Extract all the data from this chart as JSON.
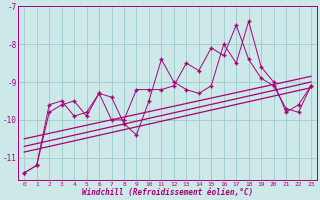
{
  "xlabel": "Windchill (Refroidissement éolien,°C)",
  "bg_color": "#cce8e8",
  "line_color": "#aa0077",
  "grid_color": "#99cccc",
  "ylim": [
    -11.6,
    -7.0
  ],
  "xlim": [
    -0.5,
    23.5
  ],
  "yticks": [
    -11,
    -10,
    -9,
    -8,
    -7
  ],
  "xticks": [
    0,
    1,
    2,
    3,
    4,
    5,
    6,
    7,
    8,
    9,
    10,
    11,
    12,
    13,
    14,
    15,
    16,
    17,
    18,
    19,
    20,
    21,
    22,
    23
  ],
  "series1_x": [
    0,
    1,
    2,
    3,
    4,
    5,
    6,
    7,
    8,
    9,
    10,
    11,
    12,
    13,
    14,
    15,
    16,
    17,
    18,
    19,
    20,
    21,
    22,
    23
  ],
  "series1_y": [
    -11.4,
    -11.2,
    -9.8,
    -9.6,
    -9.5,
    -9.9,
    -9.3,
    -9.4,
    -10.1,
    -10.4,
    -9.5,
    -8.4,
    -9.0,
    -9.2,
    -9.3,
    -9.1,
    -8.0,
    -8.5,
    -7.4,
    -8.6,
    -9.0,
    -9.8,
    -9.6,
    -9.1
  ],
  "series2_x": [
    0,
    1,
    2,
    3,
    4,
    5,
    6,
    7,
    8,
    9,
    10,
    11,
    12,
    13,
    14,
    15,
    16,
    17,
    18,
    19,
    20,
    21,
    22,
    23
  ],
  "series2_y": [
    -11.4,
    -11.2,
    -9.6,
    -9.5,
    -9.9,
    -9.8,
    -9.3,
    -10.0,
    -10.0,
    -9.2,
    -9.2,
    -9.2,
    -9.1,
    -8.5,
    -8.7,
    -8.1,
    -8.3,
    -7.5,
    -8.4,
    -8.9,
    -9.1,
    -9.7,
    -9.8,
    -9.1
  ],
  "trend1_x": [
    0,
    23
  ],
  "trend1_y": [
    -10.5,
    -8.85
  ],
  "trend2_x": [
    0,
    23
  ],
  "trend2_y": [
    -10.7,
    -9.0
  ],
  "trend3_x": [
    0,
    23
  ],
  "trend3_y": [
    -10.85,
    -9.15
  ]
}
